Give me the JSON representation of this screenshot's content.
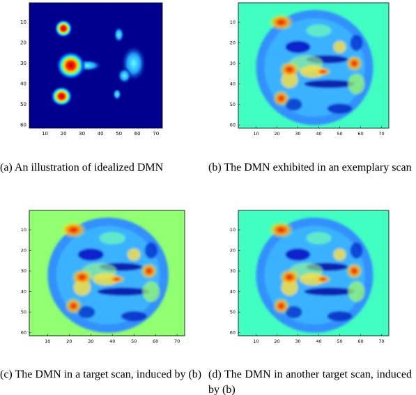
{
  "axes": {
    "xlim": [
      1.5,
      73.5
    ],
    "ylim": [
      0.5,
      61.5
    ],
    "xticks": [
      10,
      20,
      30,
      40,
      50,
      60,
      70
    ],
    "yticks": [
      10,
      20,
      30,
      40,
      50,
      60
    ]
  },
  "panels": [
    {
      "label": "(a)",
      "caption": "An illustration of idealized DMN"
    },
    {
      "label": "(b)",
      "caption": "The DMN exhibited in an exemplary scan"
    },
    {
      "label": "(c)",
      "caption": "The DMN in a target scan, induced by (b)"
    },
    {
      "label": "(d)",
      "caption": "The DMN in another target scan, induced by (b)"
    }
  ]
}
